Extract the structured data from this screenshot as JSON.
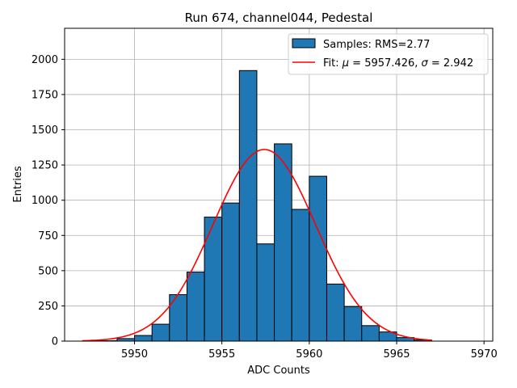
{
  "chart_data": {
    "type": "bar",
    "title": "Run 674, channel044, Pedestal",
    "xlabel": "ADC Counts",
    "ylabel": "Entries",
    "xlim": [
      5946,
      5970.5
    ],
    "ylim": [
      0,
      2220
    ],
    "xticks": [
      5950,
      5955,
      5960,
      5965,
      5970
    ],
    "yticks": [
      0,
      250,
      500,
      750,
      1000,
      1250,
      1500,
      1750,
      2000
    ],
    "grid": true,
    "legend_position": "top-right",
    "histogram": {
      "name": "Samples: RMS=2.77",
      "color": "#1f77b4",
      "edge_color": "#000000",
      "bins": [
        {
          "x0": 5948,
          "x1": 5949,
          "value": 3
        },
        {
          "x0": 5949,
          "x1": 5950,
          "value": 18
        },
        {
          "x0": 5950,
          "x1": 5951,
          "value": 40
        },
        {
          "x0": 5951,
          "x1": 5952,
          "value": 120
        },
        {
          "x0": 5952,
          "x1": 5953,
          "value": 330
        },
        {
          "x0": 5953,
          "x1": 5954,
          "value": 490
        },
        {
          "x0": 5954,
          "x1": 5955,
          "value": 880
        },
        {
          "x0": 5955,
          "x1": 5956,
          "value": 980
        },
        {
          "x0": 5956,
          "x1": 5957,
          "value": 1920
        },
        {
          "x0": 5957,
          "x1": 5958,
          "value": 690
        },
        {
          "x0": 5958,
          "x1": 5959,
          "value": 1400
        },
        {
          "x0": 5959,
          "x1": 5960,
          "value": 935
        },
        {
          "x0": 5960,
          "x1": 5961,
          "value": 1170
        },
        {
          "x0": 5961,
          "x1": 5962,
          "value": 405
        },
        {
          "x0": 5962,
          "x1": 5963,
          "value": 245
        },
        {
          "x0": 5963,
          "x1": 5964,
          "value": 110
        },
        {
          "x0": 5964,
          "x1": 5965,
          "value": 65
        },
        {
          "x0": 5965,
          "x1": 5966,
          "value": 25
        },
        {
          "x0": 5966,
          "x1": 5967,
          "value": 8
        }
      ]
    },
    "fit": {
      "name_prefix": "Fit: ",
      "mu_symbol": "μ",
      "mu_text": " = 5957.426, ",
      "sigma_symbol": "σ",
      "sigma_text": " = 2.942",
      "color": "#ff0000",
      "mu": 5957.426,
      "sigma": 2.942,
      "amplitude": 1360,
      "x_range": [
        5947,
        5967
      ]
    }
  }
}
